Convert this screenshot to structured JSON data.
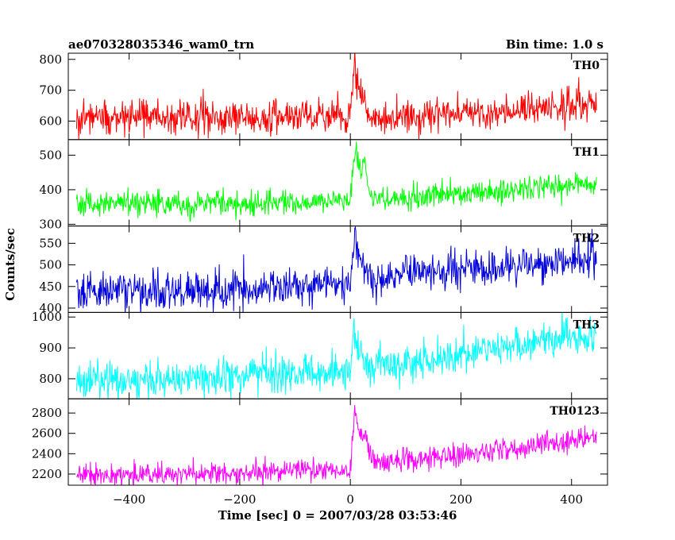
{
  "header": {
    "title": "ae070328035346_wam0_trn",
    "bin_time": "Bin time: 1.0 s"
  },
  "axes": {
    "xlabel": "Time [sec] 0 = 2007/03/28 03:53:46",
    "ylabel": "Counts/sec",
    "xlim": [
      -510,
      465
    ],
    "xticks": [
      -400,
      -200,
      0,
      200,
      400
    ],
    "xtick_labels": [
      "−400",
      "−200",
      "0",
      "200",
      "400"
    ]
  },
  "chart_data": {
    "type": "line",
    "x_range": [
      -495,
      445
    ],
    "bin_time_s": 1.0,
    "series": [
      {
        "name": "TH0",
        "color": "#ff0000",
        "ylim": [
          540,
          820
        ],
        "yticks": [
          600,
          700,
          800
        ],
        "baseline": [
          [
            -495,
            615
          ],
          [
            0,
            612
          ],
          [
            10,
            612
          ],
          [
            100,
            615
          ],
          [
            250,
            630
          ],
          [
            445,
            660
          ]
        ],
        "noise_sd": 28,
        "burst": [
          [
            0,
            0
          ],
          [
            4,
            90
          ],
          [
            8,
            180
          ],
          [
            12,
            120
          ],
          [
            18,
            70
          ],
          [
            24,
            90
          ],
          [
            30,
            30
          ],
          [
            40,
            0
          ]
        ]
      },
      {
        "name": "TH1",
        "color": "#00ff00",
        "ylim": [
          295,
          545
        ],
        "yticks": [
          300,
          400,
          500
        ],
        "baseline": [
          [
            -495,
            358
          ],
          [
            -100,
            362
          ],
          [
            0,
            368
          ],
          [
            100,
            375
          ],
          [
            300,
            400
          ],
          [
            445,
            420
          ]
        ],
        "noise_sd": 18,
        "burst": [
          [
            0,
            0
          ],
          [
            5,
            100
          ],
          [
            9,
            160
          ],
          [
            14,
            110
          ],
          [
            20,
            90
          ],
          [
            26,
            120
          ],
          [
            32,
            40
          ],
          [
            42,
            0
          ]
        ]
      },
      {
        "name": "TH2",
        "color": "#0000dd",
        "ylim": [
          390,
          590
        ],
        "yticks": [
          400,
          450,
          500,
          550
        ],
        "baseline": [
          [
            -495,
            440
          ],
          [
            -200,
            440
          ],
          [
            0,
            455
          ],
          [
            100,
            480
          ],
          [
            300,
            495
          ],
          [
            445,
            515
          ]
        ],
        "noise_sd": 22,
        "burst": [
          [
            0,
            0
          ],
          [
            5,
            70
          ],
          [
            9,
            110
          ],
          [
            14,
            60
          ],
          [
            24,
            30
          ],
          [
            35,
            0
          ]
        ]
      },
      {
        "name": "TH3",
        "color": "#00ffff",
        "ylim": [
          735,
          1015
        ],
        "yticks": [
          800,
          900,
          1000
        ],
        "baseline": [
          [
            -495,
            790
          ],
          [
            -200,
            805
          ],
          [
            0,
            830
          ],
          [
            200,
            880
          ],
          [
            445,
            950
          ]
        ],
        "noise_sd": 30,
        "burst": [
          [
            0,
            0
          ],
          [
            6,
            120
          ],
          [
            12,
            60
          ],
          [
            20,
            40
          ],
          [
            30,
            0
          ]
        ]
      },
      {
        "name": "TH0123",
        "color": "#ff00ff",
        "ylim": [
          2090,
          2940
        ],
        "yticks": [
          2200,
          2400,
          2600,
          2800
        ],
        "baseline": [
          [
            -495,
            2190
          ],
          [
            -200,
            2200
          ],
          [
            0,
            2260
          ],
          [
            50,
            2330
          ],
          [
            200,
            2380
          ],
          [
            445,
            2560
          ]
        ],
        "noise_sd": 55,
        "burst": [
          [
            0,
            0
          ],
          [
            4,
            300
          ],
          [
            8,
            550
          ],
          [
            13,
            380
          ],
          [
            20,
            250
          ],
          [
            26,
            320
          ],
          [
            34,
            100
          ],
          [
            44,
            0
          ]
        ]
      }
    ]
  }
}
